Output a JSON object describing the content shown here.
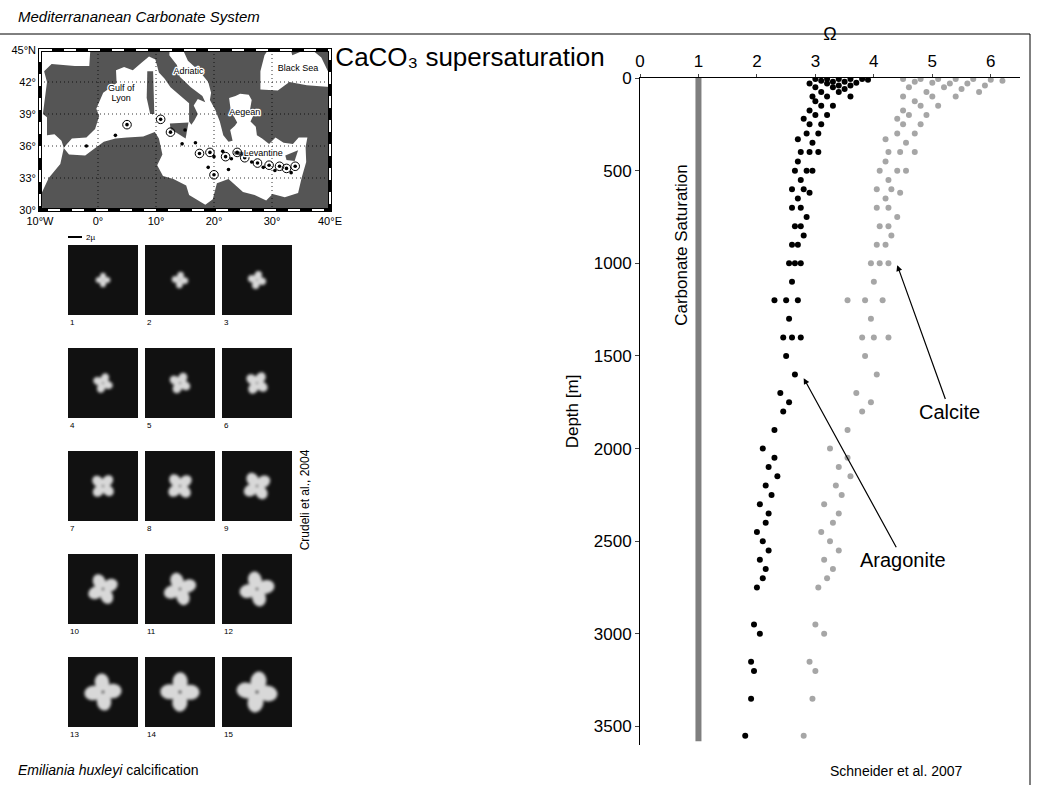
{
  "header": "Mediterrananean Carbonate System",
  "title": "CaCO₃ supersaturation",
  "chart_data": {
    "type": "scatter",
    "x_label": "Ω",
    "y_label": "Depth [m]",
    "xlim": [
      0,
      6.5
    ],
    "xticks": [
      0,
      1,
      2,
      3,
      4,
      5,
      6
    ],
    "ylim": [
      3600,
      0
    ],
    "yticks": [
      0,
      500,
      1000,
      1500,
      2000,
      2500,
      3000,
      3500
    ],
    "grid": false,
    "marker": "circle",
    "series": [
      {
        "name": "Aragonite",
        "color": "#000000",
        "x": [
          3.0,
          3.2,
          3.4,
          3.6,
          3.8,
          3.9,
          3.1,
          3.3,
          3.5,
          3.7,
          2.9,
          3.2,
          3.4,
          3.6,
          3.0,
          3.3,
          3.5,
          3.1,
          3.4,
          2.95,
          3.2,
          3.6,
          3.0,
          3.3,
          3.1,
          2.9,
          3.2,
          3.0,
          2.8,
          3.1,
          2.9,
          2.85,
          3.05,
          2.7,
          2.95,
          2.75,
          2.9,
          3.05,
          2.7,
          2.85,
          2.65,
          2.95,
          2.75,
          2.6,
          2.8,
          2.9,
          2.7,
          2.75,
          2.6,
          2.85,
          2.65,
          2.75,
          2.8,
          2.6,
          2.7,
          2.55,
          2.65,
          2.75,
          2.6,
          2.3,
          2.5,
          2.7,
          2.55,
          2.45,
          2.6,
          2.75,
          2.5,
          2.65,
          2.4,
          2.55,
          2.45,
          2.3,
          2.1,
          2.3,
          2.2,
          2.35,
          2.15,
          2.25,
          2.05,
          2.2,
          2.15,
          2.0,
          2.1,
          2.2,
          2.05,
          2.15,
          2.1,
          2.0,
          1.95,
          2.05,
          1.9,
          1.95,
          1.9,
          1.8
        ],
        "y": [
          5,
          5,
          5,
          5,
          5,
          10,
          15,
          20,
          20,
          25,
          30,
          30,
          40,
          40,
          50,
          50,
          60,
          75,
          75,
          100,
          100,
          100,
          125,
          150,
          150,
          175,
          200,
          200,
          220,
          250,
          250,
          300,
          300,
          330,
          350,
          400,
          400,
          400,
          450,
          500,
          500,
          500,
          550,
          600,
          600,
          620,
          650,
          700,
          700,
          750,
          800,
          800,
          850,
          900,
          900,
          1000,
          1000,
          1000,
          1100,
          1200,
          1200,
          1200,
          1300,
          1400,
          1400,
          1400,
          1500,
          1600,
          1700,
          1750,
          1800,
          1900,
          2000,
          2050,
          2100,
          2150,
          2200,
          2250,
          2300,
          2350,
          2400,
          2450,
          2500,
          2550,
          2600,
          2650,
          2700,
          2750,
          2950,
          3000,
          3150,
          3200,
          3350,
          3550
        ]
      },
      {
        "name": "Calcite",
        "color": "#a6a6a6",
        "x": [
          4.5,
          4.8,
          5.1,
          5.4,
          5.7,
          6.0,
          6.2,
          4.7,
          5.0,
          5.3,
          5.6,
          5.9,
          4.6,
          5.2,
          5.5,
          5.8,
          4.9,
          4.5,
          5.0,
          5.4,
          4.7,
          5.1,
          4.8,
          4.5,
          4.9,
          4.6,
          4.4,
          4.8,
          4.5,
          4.4,
          4.7,
          4.2,
          4.55,
          4.25,
          4.45,
          4.7,
          4.2,
          4.4,
          4.1,
          4.55,
          4.25,
          4.05,
          4.3,
          4.45,
          4.2,
          4.25,
          4.05,
          4.4,
          4.1,
          4.25,
          4.3,
          4.05,
          4.2,
          3.95,
          4.1,
          4.25,
          4.0,
          3.55,
          3.85,
          4.15,
          3.95,
          3.8,
          4.0,
          4.25,
          3.85,
          4.05,
          3.7,
          3.95,
          3.8,
          3.55,
          3.25,
          3.55,
          3.4,
          3.6,
          3.35,
          3.45,
          3.15,
          3.4,
          3.3,
          3.1,
          3.25,
          3.4,
          3.15,
          3.3,
          3.2,
          3.05,
          3.0,
          3.15,
          2.9,
          3.0,
          2.95,
          2.8
        ],
        "y": [
          5,
          5,
          5,
          5,
          5,
          10,
          15,
          20,
          25,
          30,
          30,
          40,
          50,
          50,
          60,
          75,
          75,
          100,
          100,
          100,
          125,
          150,
          150,
          175,
          200,
          200,
          220,
          250,
          250,
          300,
          300,
          330,
          350,
          400,
          400,
          400,
          450,
          500,
          500,
          500,
          550,
          600,
          600,
          620,
          650,
          700,
          700,
          750,
          800,
          800,
          850,
          900,
          900,
          1000,
          1000,
          1000,
          1100,
          1200,
          1200,
          1200,
          1300,
          1400,
          1400,
          1400,
          1500,
          1600,
          1700,
          1750,
          1800,
          1900,
          2000,
          2050,
          2100,
          2150,
          2200,
          2250,
          2300,
          2350,
          2400,
          2450,
          2500,
          2550,
          2600,
          2650,
          2700,
          2750,
          2950,
          3000,
          3150,
          3200,
          3350,
          3550
        ]
      }
    ],
    "reference_line": {
      "label": "Carbonate Saturation",
      "x": 1,
      "y": [
        0,
        3580
      ],
      "color": "#7f7f7f"
    },
    "annotations": [
      {
        "text": "Calcite",
        "x": 4.4,
        "y": 1010,
        "text_x": 5.3,
        "text_y": 1800
      },
      {
        "text": "Aragonite",
        "x": 2.8,
        "y": 1620,
        "text_x": 4.5,
        "text_y": 2600
      }
    ],
    "source": "Schneider et al. 2007"
  },
  "map": {
    "lon_range": [
      -10,
      40
    ],
    "lat_range": [
      30,
      45
    ],
    "lon_ticks": [
      {
        "value": -10,
        "label": "10°W"
      },
      {
        "value": 0,
        "label": "0°"
      },
      {
        "value": 10,
        "label": "10°"
      },
      {
        "value": 20,
        "label": "20°"
      },
      {
        "value": 30,
        "label": "30°"
      },
      {
        "value": 40,
        "label": "40°E"
      }
    ],
    "lat_ticks": [
      {
        "value": 30,
        "label": "30°"
      },
      {
        "value": 33,
        "label": "33°"
      },
      {
        "value": 36,
        "label": "36°"
      },
      {
        "value": 39,
        "label": "39°"
      },
      {
        "value": 42,
        "label": "42°"
      },
      {
        "value": 45,
        "label": "45°N"
      }
    ],
    "labels": [
      {
        "text": "Gulf of Lyon",
        "lon": 4.0,
        "lat": 41.0
      },
      {
        "text": "Adriatic",
        "lon": 15.6,
        "lat": 43.0
      },
      {
        "text": "Black Sea",
        "lon": 34.5,
        "lat": 43.3
      },
      {
        "text": "Aegean",
        "lon": 25.3,
        "lat": 39.2
      },
      {
        "text": "Levantine",
        "lon": 28.5,
        "lat": 35.3
      }
    ],
    "stations": [
      {
        "lon": 5.0,
        "lat": 38.0,
        "circled": true
      },
      {
        "lon": 10.8,
        "lat": 38.5,
        "circled": true
      },
      {
        "lon": 12.5,
        "lat": 37.3,
        "circled": true
      },
      {
        "lon": 17.5,
        "lat": 35.3,
        "circled": true
      },
      {
        "lon": 19.3,
        "lat": 35.4,
        "circled": true
      },
      {
        "lon": 22.0,
        "lat": 35.0,
        "circled": true
      },
      {
        "lon": 24.0,
        "lat": 35.4,
        "circled": true
      },
      {
        "lon": 25.3,
        "lat": 34.9,
        "circled": true
      },
      {
        "lon": 27.5,
        "lat": 34.4,
        "circled": true
      },
      {
        "lon": 29.5,
        "lat": 34.2,
        "circled": true
      },
      {
        "lon": 31.3,
        "lat": 34.1,
        "circled": true
      },
      {
        "lon": 32.5,
        "lat": 33.9,
        "circled": true
      },
      {
        "lon": 34.0,
        "lat": 34.1,
        "circled": true
      },
      {
        "lon": 20.0,
        "lat": 33.3,
        "circled": true
      },
      {
        "lon": -2.0,
        "lat": 36.0,
        "circled": false
      },
      {
        "lon": 3.0,
        "lat": 37.0,
        "circled": false
      },
      {
        "lon": 14.5,
        "lat": 36.2,
        "circled": false
      },
      {
        "lon": 15.0,
        "lat": 37.5,
        "circled": false
      },
      {
        "lon": 16.8,
        "lat": 36.3,
        "circled": false
      },
      {
        "lon": 20.0,
        "lat": 35.0,
        "circled": false
      },
      {
        "lon": 21.5,
        "lat": 35.5,
        "circled": false
      },
      {
        "lon": 23.0,
        "lat": 34.8,
        "circled": false
      },
      {
        "lon": 26.5,
        "lat": 34.5,
        "circled": false
      },
      {
        "lon": 28.5,
        "lat": 34.0,
        "circled": false
      },
      {
        "lon": 30.5,
        "lat": 33.7,
        "circled": false
      },
      {
        "lon": 33.3,
        "lat": 33.5,
        "circled": false
      },
      {
        "lon": 22.5,
        "lat": 33.8,
        "circled": false
      },
      {
        "lon": 19.0,
        "lat": 34.0,
        "circled": false
      }
    ]
  },
  "micrographs": {
    "scale": "2µ",
    "captions": [
      "1",
      "2",
      "3",
      "4",
      "5",
      "6",
      "7",
      "8",
      "9",
      "10",
      "11",
      "12",
      "13",
      "14",
      "15"
    ],
    "credit": "Crudeli et al., 2004",
    "caption_species": "Emiliania huxleyi",
    "caption_text": "calcification"
  }
}
